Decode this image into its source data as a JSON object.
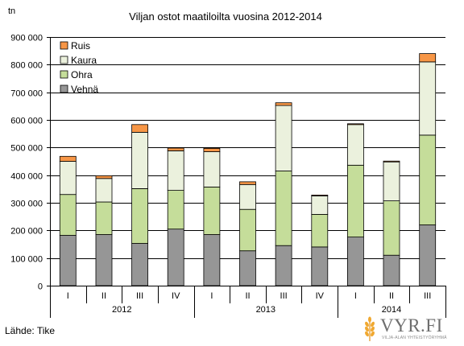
{
  "chart_data": {
    "type": "bar",
    "stacked": true,
    "title": "Viljan ostot maatiloilta vuosina 2012-2014",
    "ylabel": "tn",
    "ylim": [
      0,
      900000
    ],
    "yticks": [
      "0",
      "100 000",
      "200 000",
      "300 000",
      "400 000",
      "500 000",
      "600 000",
      "700 000",
      "800 000",
      "900 000"
    ],
    "categories": [
      "I",
      "II",
      "III",
      "IV",
      "I",
      "II",
      "III",
      "IV",
      "I",
      "II",
      "III"
    ],
    "groups": [
      {
        "label": "2012",
        "count": 4
      },
      {
        "label": "2013",
        "count": 4
      },
      {
        "label": "2014",
        "count": 3
      }
    ],
    "series": [
      {
        "name": "Vehnä",
        "color": "#969696",
        "values": [
          182000,
          185000,
          153000,
          205000,
          185000,
          126000,
          145000,
          140000,
          176000,
          110000,
          220000
        ]
      },
      {
        "name": "Ohra",
        "color": "#c5dd9a",
        "values": [
          148000,
          118000,
          198000,
          140000,
          172000,
          150000,
          270000,
          118000,
          260000,
          197000,
          325000
        ]
      },
      {
        "name": "Kaura",
        "color": "#ebf1dd",
        "values": [
          120000,
          85000,
          204000,
          143000,
          128000,
          90000,
          237000,
          67000,
          147000,
          141000,
          265000
        ]
      },
      {
        "name": "Ruis",
        "color": "#f79646",
        "values": [
          18000,
          10000,
          28000,
          10000,
          12000,
          10000,
          10000,
          3000,
          3000,
          3000,
          30000
        ]
      }
    ],
    "legend_position": "top-left",
    "grid": true
  },
  "source": "Lähde: Tike",
  "logo": {
    "name": "VYR.FI",
    "subtitle": "VILJA-ALAN YHTEISTYÖRYHMÄ",
    "icon": "wheat-icon"
  }
}
